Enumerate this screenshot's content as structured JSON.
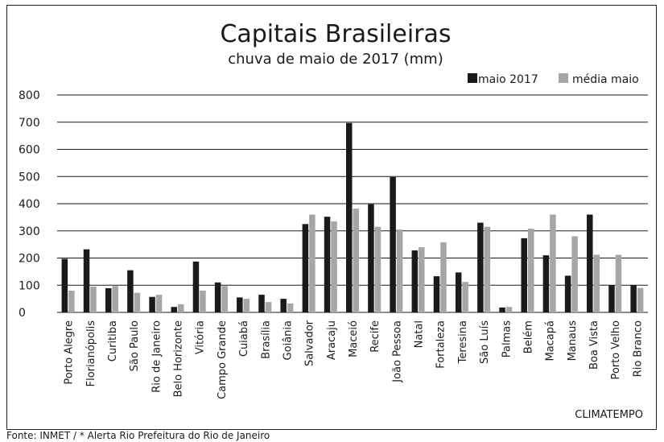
{
  "chart_data": {
    "type": "bar",
    "title": "Capitais Brasileiras",
    "subtitle": "chuva de maio de 2017 (mm)",
    "xlabel": "",
    "ylabel": "",
    "ylim": [
      0,
      800
    ],
    "yticks": [
      "0",
      "100",
      "200",
      "300",
      "400",
      "500",
      "600",
      "700",
      "800"
    ],
    "grid": "horizontal",
    "legend_position": "top-right",
    "categories": [
      "Porto Alegre",
      "Florianópolis",
      "Curitiba",
      "São Paulo",
      "Rio de Janeiro",
      "Belo Horizonte",
      "Vitória",
      "Campo Grande",
      "Cuiabá",
      "Brasília",
      "Goiânia",
      "Salvador",
      "Aracaju",
      "Maceió",
      "Recife",
      "João Pessoa",
      "Natal",
      "Fortaleza",
      "Teresina",
      "São Luís",
      "Palmas",
      "Belém",
      "Macapá",
      "Manaus",
      "Boa Vista",
      "Porto Velho",
      "Rio Branco"
    ],
    "series": [
      {
        "name": "maio 2017",
        "color": "#1a1a1a",
        "values": [
          197,
          232,
          89,
          155,
          57,
          20,
          187,
          110,
          55,
          65,
          50,
          325,
          352,
          697,
          398,
          498,
          228,
          133,
          147,
          330,
          18,
          273,
          210,
          135,
          360,
          100,
          100
        ]
      },
      {
        "name": "média maio",
        "color": "#a6a6a6",
        "values": [
          80,
          95,
          97,
          72,
          65,
          30,
          80,
          97,
          50,
          38,
          33,
          360,
          335,
          382,
          315,
          305,
          240,
          258,
          112,
          315,
          20,
          308,
          360,
          280,
          212,
          212,
          90
        ]
      }
    ]
  },
  "credit": "CLIMATEMPO",
  "source": "Fonte: INMET / * Alerta Rio Prefeitura do Rio de Janeiro"
}
